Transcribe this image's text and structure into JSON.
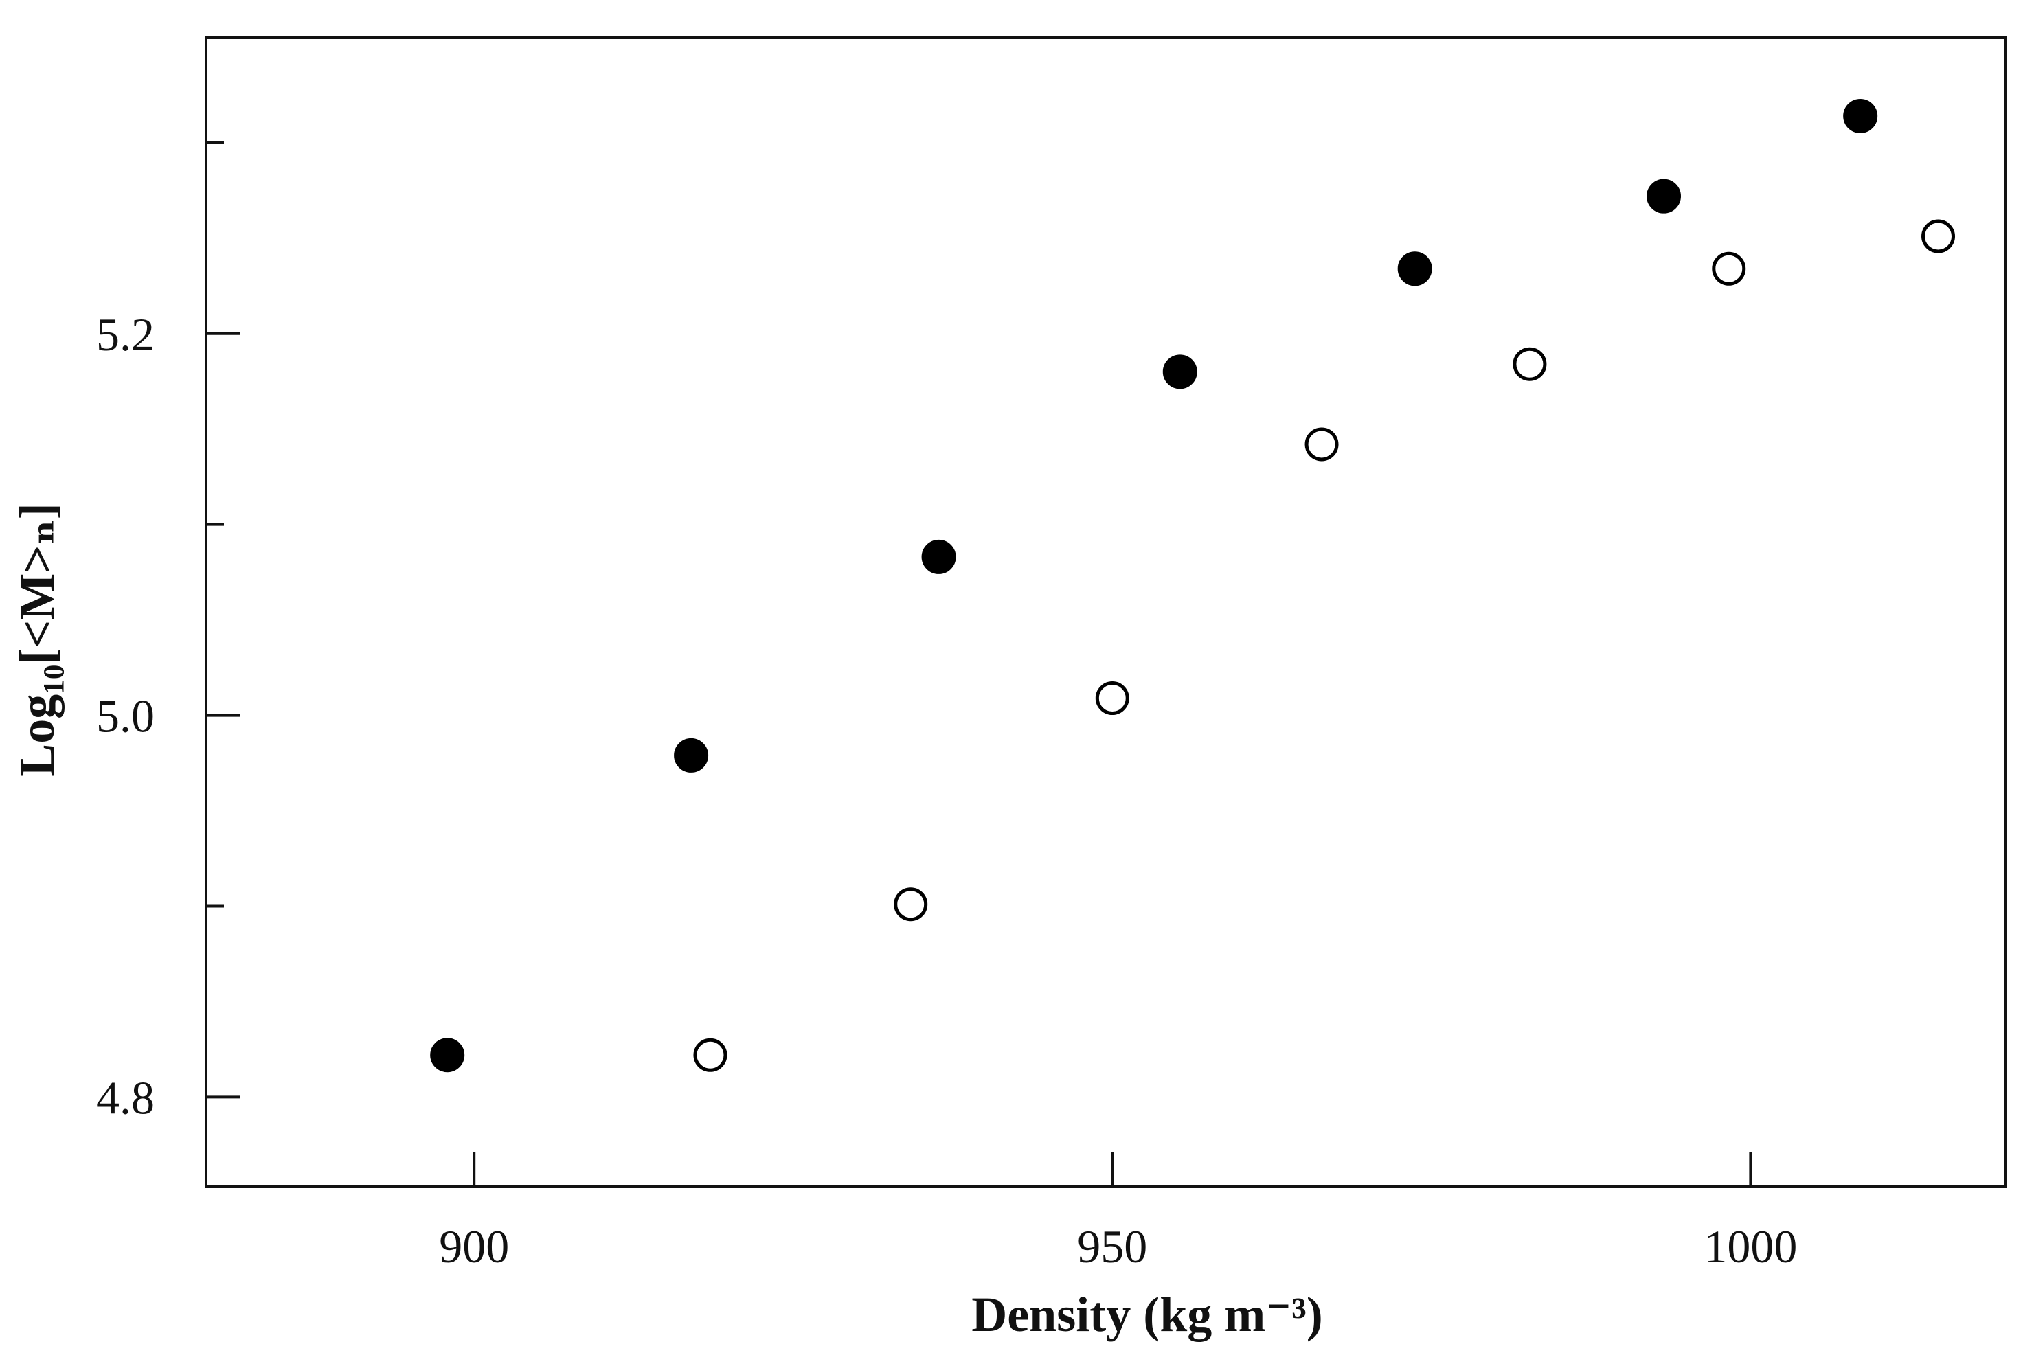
{
  "chart_data": {
    "type": "scatter",
    "title": "",
    "xlabel": "Density (kg m⁻³)",
    "ylabel": "Log₁₀[<M>ₙ]",
    "xlim": [
      879,
      1020
    ],
    "ylim": [
      4.753,
      5.355
    ],
    "xticks": [
      900,
      950,
      1000
    ],
    "xtick_labels": [
      "900",
      "950",
      "1000"
    ],
    "yticks": [
      4.8,
      5.0,
      5.2
    ],
    "ytick_labels": [
      "4.8",
      "5.0",
      "5.2"
    ],
    "ytick_minor": [
      4.9,
      5.1,
      5.3
    ],
    "grid": false,
    "legend": "none",
    "colors": {
      "axis": "#111111",
      "filled_marker": "#000000",
      "open_marker_stroke": "#000000",
      "open_marker_fill": "#ffffff"
    },
    "series": [
      {
        "marker": "filled-circle",
        "points": [
          {
            "x": 897.9,
            "y": 4.822
          },
          {
            "x": 917.0,
            "y": 4.979
          },
          {
            "x": 936.4,
            "y": 5.083
          },
          {
            "x": 955.3,
            "y": 5.18
          },
          {
            "x": 973.7,
            "y": 5.234
          },
          {
            "x": 993.2,
            "y": 5.272
          },
          {
            "x": 1008.6,
            "y": 5.314
          }
        ]
      },
      {
        "marker": "open-circle",
        "points": [
          {
            "x": 918.5,
            "y": 4.822
          },
          {
            "x": 934.2,
            "y": 4.901
          },
          {
            "x": 950.0,
            "y": 5.009
          },
          {
            "x": 966.4,
            "y": 5.142
          },
          {
            "x": 982.7,
            "y": 5.184
          },
          {
            "x": 998.3,
            "y": 5.234
          },
          {
            "x": 1014.7,
            "y": 5.251
          }
        ]
      }
    ]
  }
}
